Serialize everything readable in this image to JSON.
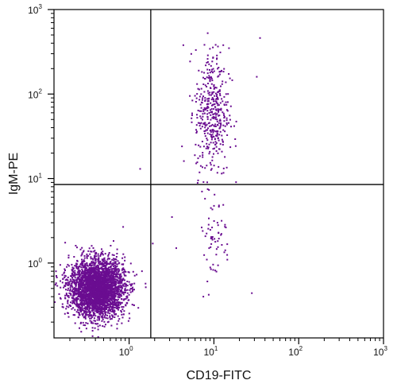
{
  "chart_data": {
    "type": "scatter",
    "title": "",
    "xlabel": "CD19-FITC",
    "ylabel": "IgM-PE",
    "xscale": "log",
    "yscale": "log",
    "xlim": [
      0.13,
      1000
    ],
    "ylim": [
      0.13,
      1000
    ],
    "x_ticks": [
      {
        "base": "10",
        "exp": "0",
        "value": 1
      },
      {
        "base": "10",
        "exp": "1",
        "value": 10
      },
      {
        "base": "10",
        "exp": "2",
        "value": 100
      },
      {
        "base": "10",
        "exp": "3",
        "value": 1000
      }
    ],
    "y_ticks": [
      {
        "base": "10",
        "exp": "0",
        "value": 1
      },
      {
        "base": "10",
        "exp": "1",
        "value": 10
      },
      {
        "base": "10",
        "exp": "2",
        "value": 100
      },
      {
        "base": "10",
        "exp": "3",
        "value": 1000
      }
    ],
    "quadrant_gates": {
      "x": 1.8,
      "y": 8.5
    },
    "grid": false,
    "point_color": "#6a0d91",
    "populations": [
      {
        "name": "",
        "description": "dense cluster lower-left (CD19- IgM-)",
        "x_center": 0.42,
        "y_center": 0.5,
        "x_spread_log": 0.16,
        "y_spread_log": 0.17,
        "count": 3200
      },
      {
        "name": "",
        "description": "CD19+ IgM+ cluster upper-right",
        "x_center": 9.5,
        "y_center": 60,
        "x_spread_log": 0.1,
        "y_spread_log": 0.38,
        "count": 420
      },
      {
        "name": "",
        "description": "CD19+ IgM- scattered lower-right",
        "x_center": 10,
        "y_center": 2.0,
        "x_spread_log": 0.1,
        "y_spread_log": 0.25,
        "count": 60
      }
    ],
    "outliers": [
      [
        1.35,
        13
      ],
      [
        3.2,
        3.5
      ],
      [
        1.9,
        1.7
      ],
      [
        28,
        0.44
      ],
      [
        7.5,
        0.4
      ],
      [
        35,
        460
      ],
      [
        32,
        160
      ],
      [
        4.2,
        24
      ],
      [
        3.6,
        1.5
      ]
    ]
  }
}
